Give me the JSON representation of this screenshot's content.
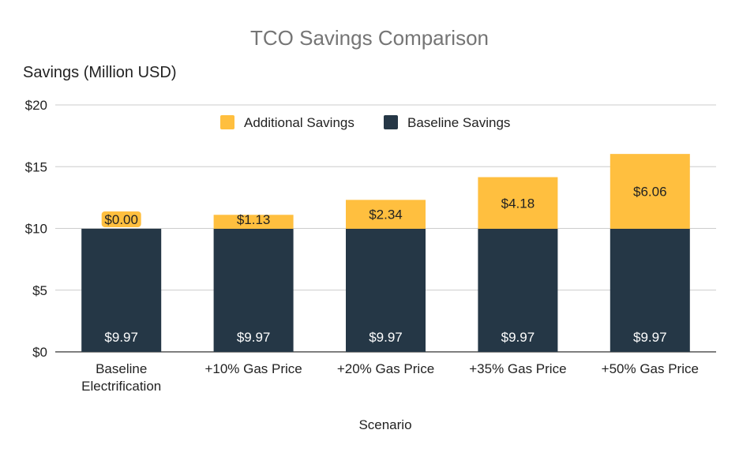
{
  "chart_data": {
    "type": "bar",
    "stacked": true,
    "title": "TCO Savings Comparison",
    "xlabel": "Scenario",
    "ylabel": "Savings (Million USD)",
    "ylim": [
      0,
      20
    ],
    "yticks": [
      0,
      5,
      10,
      15,
      20
    ],
    "ytick_labels": [
      "$0",
      "$5",
      "$10",
      "$15",
      "$20"
    ],
    "grid": true,
    "legend_position": "top",
    "categories": [
      [
        "Baseline",
        "Electrification"
      ],
      [
        "+10% Gas Price"
      ],
      [
        "+20% Gas Price"
      ],
      [
        "+35% Gas Price"
      ],
      [
        "+50% Gas Price"
      ]
    ],
    "series": [
      {
        "name": "Baseline Savings",
        "color": "#253746",
        "values": [
          9.97,
          9.97,
          9.97,
          9.97,
          9.97
        ],
        "labels": [
          "$9.97",
          "$9.97",
          "$9.97",
          "$9.97",
          "$9.97"
        ]
      },
      {
        "name": "Additional Savings",
        "color": "#FFBF3F",
        "values": [
          0.0,
          1.13,
          2.34,
          4.18,
          6.06
        ],
        "labels": [
          "$0.00",
          "$1.13",
          "$2.34",
          "$4.18",
          "$6.06"
        ]
      }
    ],
    "legend_order": [
      1,
      0
    ]
  }
}
